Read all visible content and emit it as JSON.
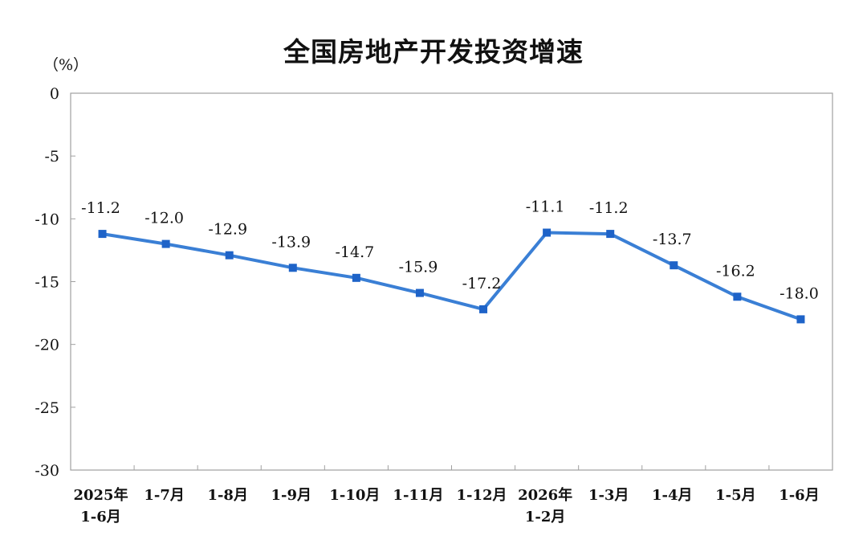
{
  "chart_data": {
    "type": "line",
    "title": "全国房地产开发投资增速",
    "unit": "（%）",
    "categories": [
      [
        "2025年",
        "1-6月"
      ],
      [
        "1-7月"
      ],
      [
        "1-8月"
      ],
      [
        "1-9月"
      ],
      [
        "1-10月"
      ],
      [
        "1-11月"
      ],
      [
        "1-12月"
      ],
      [
        "2026年",
        "1-2月"
      ],
      [
        "1-3月"
      ],
      [
        "1-4月"
      ],
      [
        "1-5月"
      ],
      [
        "1-6月"
      ]
    ],
    "values": [
      -11.2,
      -12.0,
      -12.9,
      -13.9,
      -14.7,
      -15.9,
      -17.2,
      -11.1,
      -11.2,
      -13.7,
      -16.2,
      -18.0
    ],
    "labels": [
      "-11.2",
      "-12.0",
      "-12.9",
      "-13.9",
      "-14.7",
      "-15.9",
      "-17.2",
      "-11.1",
      "-11.2",
      "-13.7",
      "-16.2",
      "-18.0"
    ],
    "yticks": [
      "0",
      "-5",
      "-10",
      "-15",
      "-20",
      "-25",
      "-30"
    ],
    "ylim": [
      -30,
      0
    ],
    "line_color": "#3a7fd5",
    "marker_color": "#1e63c8",
    "grid": false
  }
}
